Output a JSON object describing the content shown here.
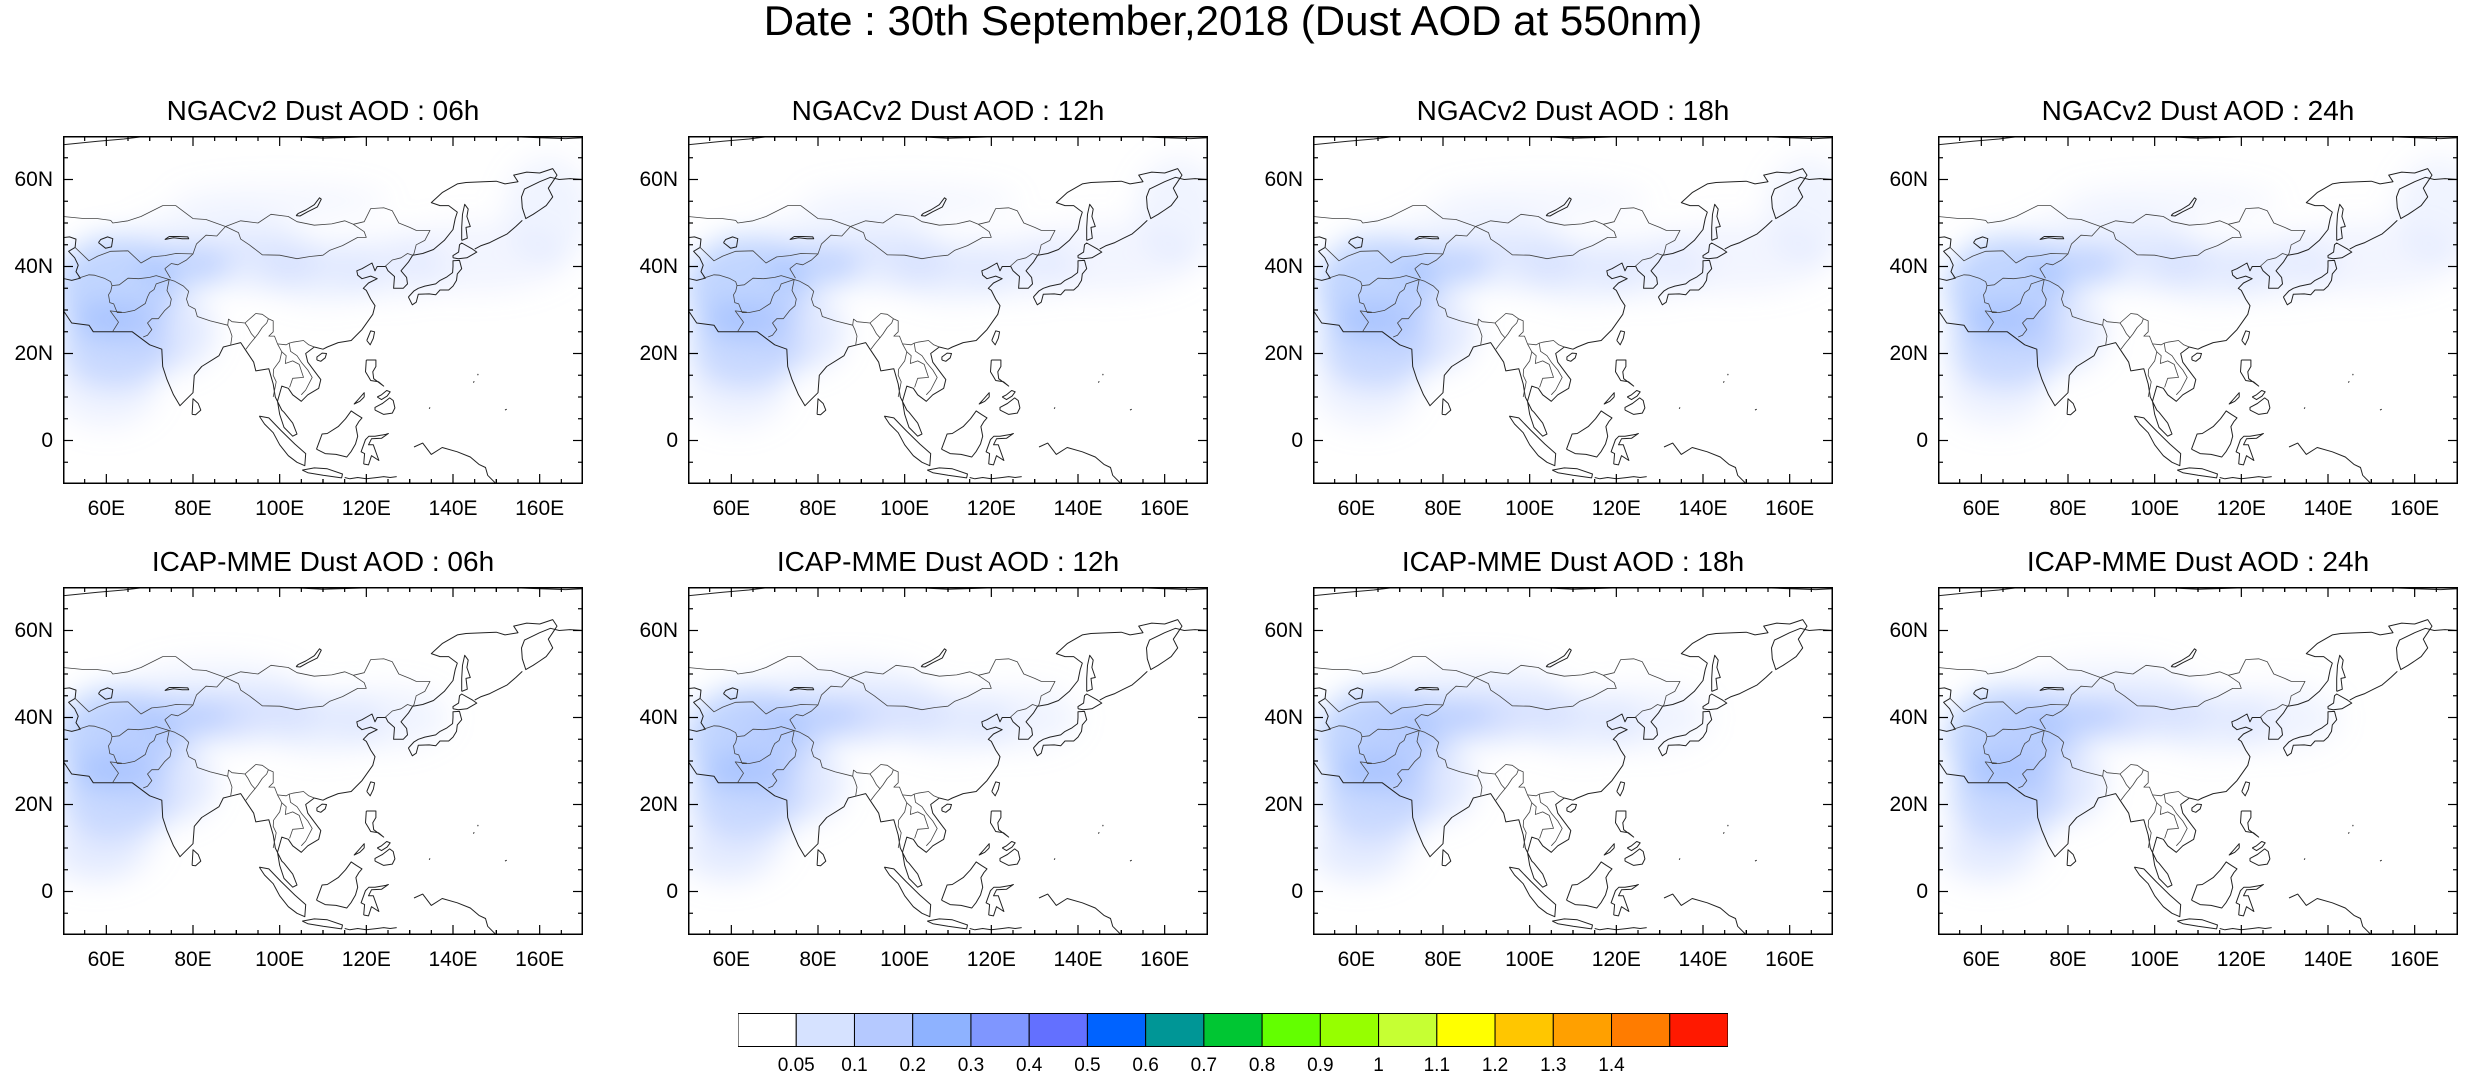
{
  "title": "Date : 30th September,2018 (Dust AOD at 550nm)",
  "panels": [
    {
      "title": "NGACv2 Dust AOD : 06h"
    },
    {
      "title": "NGACv2 Dust AOD : 12h"
    },
    {
      "title": "NGACv2 Dust AOD : 18h"
    },
    {
      "title": "NGACv2 Dust AOD : 24h"
    },
    {
      "title": "ICAP-MME Dust AOD : 06h"
    },
    {
      "title": "ICAP-MME Dust AOD : 12h"
    },
    {
      "title": "ICAP-MME Dust AOD : 18h"
    },
    {
      "title": "ICAP-MME Dust AOD : 24h"
    }
  ],
  "lat_labels": [
    "60N",
    "40N",
    "20N",
    "0"
  ],
  "lon_labels": [
    "60E",
    "80E",
    "100E",
    "120E",
    "140E",
    "160E"
  ],
  "colorbar": {
    "labels": [
      "0.05",
      "0.1",
      "0.2",
      "0.3",
      "0.4",
      "0.5",
      "0.6",
      "0.7",
      "0.8",
      "0.9",
      "1",
      "1.1",
      "1.2",
      "1.3",
      "1.4"
    ],
    "colors": [
      "#ffffff",
      "#d6e2ff",
      "#b5c9ff",
      "#8eb2ff",
      "#7f96ff",
      "#6370ff",
      "#0063ff",
      "#009696",
      "#00c633",
      "#63ff00",
      "#96ff00",
      "#c6ff33",
      "#ffff00",
      "#ffc600",
      "#ffa000",
      "#ff7c00",
      "#ff1900"
    ]
  },
  "map_data": {
    "lon_range": [
      50,
      170
    ],
    "lat_range": [
      -10,
      70
    ],
    "lon_ticks": [
      60,
      80,
      100,
      120,
      140,
      160
    ],
    "lat_ticks": [
      60,
      40,
      20,
      0
    ],
    "field": "Dust AOD at 550nm",
    "valid_date": "30th September,2018"
  }
}
